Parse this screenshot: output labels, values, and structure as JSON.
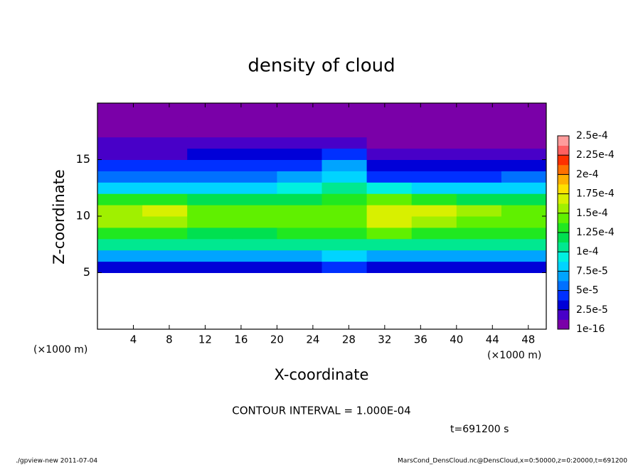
{
  "chart_data": {
    "type": "heatmap",
    "title": "density of cloud",
    "x_label": "X-coordinate",
    "y_label": "Z-coordinate",
    "x_unit_label": "(×1000 m)",
    "annotation": "CONTOUR INTERVAL = 1.000E-04",
    "time_label": "t=691200 s",
    "footer_left": "./gpview-new  2011-07-04",
    "footer_right": "MarsCond_DensCloud.nc@DensCloud,x=0:50000,z=0:20000,t=691200",
    "xlim": [
      0,
      50
    ],
    "ylim": [
      0,
      20
    ],
    "xticks": [
      4,
      8,
      12,
      16,
      20,
      24,
      28,
      32,
      36,
      40,
      44,
      48
    ],
    "yticks": [
      5,
      10,
      15
    ],
    "x": [
      2.5,
      7.5,
      12.5,
      17.5,
      22.5,
      27.5,
      32.5,
      37.5,
      42.5,
      47.5
    ],
    "z": [
      0.5,
      1.5,
      2.5,
      3.5,
      4.5,
      5.5,
      6.5,
      7.5,
      8.5,
      9.5,
      10.5,
      11.5,
      12.5,
      13.5,
      14.5,
      15.5,
      16.5,
      17.5,
      18.5,
      19.5
    ],
    "values": [
      [
        null,
        null,
        null,
        null,
        null,
        null,
        null,
        null,
        null,
        null
      ],
      [
        null,
        null,
        null,
        null,
        null,
        null,
        null,
        null,
        null,
        null
      ],
      [
        null,
        null,
        null,
        null,
        null,
        null,
        null,
        null,
        null,
        null
      ],
      [
        null,
        null,
        null,
        null,
        null,
        null,
        null,
        null,
        null,
        null
      ],
      [
        null,
        null,
        null,
        null,
        null,
        null,
        null,
        null,
        null,
        null
      ],
      [
        3e-05,
        3e-05,
        3e-05,
        3e-05,
        3.5e-05,
        4e-05,
        3e-05,
        3e-05,
        3e-05,
        3e-05
      ],
      [
        7.5e-05,
        7e-05,
        7e-05,
        7e-05,
        7.5e-05,
        8.5e-05,
        7e-05,
        7e-05,
        7e-05,
        7e-05
      ],
      [
        0.00011,
        0.000105,
        0.000105,
        0.000105,
        0.00011,
        0.00011,
        0.00011,
        0.000105,
        0.000105,
        0.000105
      ],
      [
        0.000135,
        0.00013,
        0.000125,
        0.000125,
        0.00013,
        0.00013,
        0.00014,
        0.000135,
        0.00013,
        0.00013
      ],
      [
        0.000155,
        0.00016,
        0.00014,
        0.00014,
        0.000145,
        0.000145,
        0.000165,
        0.00016,
        0.00015,
        0.000145
      ],
      [
        0.00016,
        0.00017,
        0.000145,
        0.00014,
        0.000145,
        0.000145,
        0.000175,
        0.00017,
        0.000155,
        0.00015
      ],
      [
        0.00013,
        0.00013,
        0.00012,
        0.000115,
        0.00012,
        0.00013,
        0.00014,
        0.00013,
        0.000125,
        0.000125
      ],
      [
        8.5e-05,
        8.5e-05,
        8.5e-05,
        8.5e-05,
        9e-05,
        0.000105,
        9e-05,
        8e-05,
        8e-05,
        8.5e-05
      ],
      [
        6e-05,
        6e-05,
        6e-05,
        6e-05,
        6.5e-05,
        8.5e-05,
        5e-05,
        5e-05,
        5e-05,
        5.5e-05
      ],
      [
        4e-05,
        4e-05,
        4.5e-05,
        4.5e-05,
        5e-05,
        7e-05,
        3e-05,
        3e-05,
        3e-05,
        3.5e-05
      ],
      [
        2.5e-05,
        2.5e-05,
        3e-05,
        3e-05,
        3.5e-05,
        4.5e-05,
        1.5e-05,
        1.5e-05,
        1.5e-05,
        2e-05
      ],
      [
        1.5e-05,
        1.5e-05,
        1.5e-05,
        1.5e-05,
        2e-05,
        2.5e-05,
        8e-06,
        8e-06,
        8e-06,
        1e-05
      ],
      [
        8e-06,
        8e-06,
        8e-06,
        8e-06,
        1e-05,
        1.2e-05,
        4e-06,
        4e-06,
        4e-06,
        5e-06
      ],
      [
        3e-06,
        3e-06,
        3e-06,
        3e-06,
        3e-06,
        3e-06,
        3e-06,
        3e-06,
        3e-06,
        3e-06
      ],
      [
        1e-06,
        1e-06,
        1e-06,
        1e-06,
        1e-06,
        1e-06,
        1e-06,
        1e-06,
        1e-06,
        1e-06
      ]
    ],
    "colorbar_ticks": [
      {
        "value": 1e-16,
        "label": "1e-16"
      },
      {
        "value": 2.5e-05,
        "label": "2.5e-5"
      },
      {
        "value": 5e-05,
        "label": "5e-5"
      },
      {
        "value": 7.5e-05,
        "label": "7.5e-5"
      },
      {
        "value": 0.0001,
        "label": "1e-4"
      },
      {
        "value": 0.000125,
        "label": "1.25e-4"
      },
      {
        "value": 0.00015,
        "label": "1.5e-4"
      },
      {
        "value": 0.000175,
        "label": "1.75e-4"
      },
      {
        "value": 0.0002,
        "label": "2e-4"
      },
      {
        "value": 0.000225,
        "label": "2.25e-4"
      },
      {
        "value": 0.00025,
        "label": "2.5e-4"
      }
    ],
    "colors": [
      "#7a00a8",
      "#4800c8",
      "#0000d8",
      "#0030ff",
      "#0070ff",
      "#00a4ff",
      "#00d4ff",
      "#00f0e0",
      "#00e890",
      "#00e050",
      "#20e820",
      "#60f000",
      "#a0f000",
      "#d8f000",
      "#ffe000",
      "#ffb000",
      "#ff7000",
      "#ff3000",
      "#ff6060",
      "#ff9c9c"
    ]
  }
}
